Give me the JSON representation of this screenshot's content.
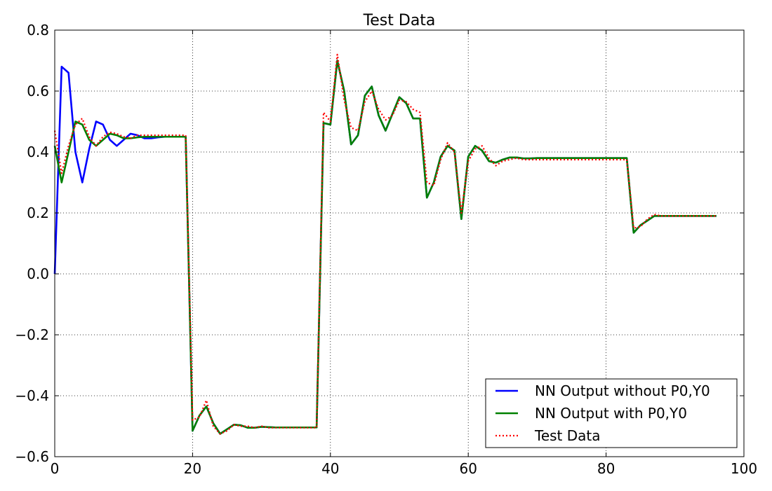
{
  "chart_data": {
    "type": "line",
    "title": "Test Data",
    "xlabel": "",
    "ylabel": "",
    "xlim": [
      0,
      100
    ],
    "ylim": [
      -0.6,
      0.8
    ],
    "grid": true,
    "legend_position": "bottom-right",
    "x_ticks": [
      0,
      20,
      40,
      60,
      80,
      100
    ],
    "x_tick_labels": [
      "0",
      "20",
      "40",
      "60",
      "80",
      "100"
    ],
    "y_ticks": [
      -0.6,
      -0.4,
      -0.2,
      0.0,
      0.2,
      0.4,
      0.6,
      0.8
    ],
    "y_tick_labels": [
      "−0.6",
      "−0.4",
      "−0.2",
      "0.0",
      "0.2",
      "0.4",
      "0.6",
      "0.8"
    ],
    "x": [
      0,
      1,
      2,
      3,
      4,
      5,
      6,
      7,
      8,
      9,
      10,
      11,
      12,
      13,
      14,
      15,
      16,
      17,
      18,
      19,
      20,
      21,
      22,
      23,
      24,
      25,
      26,
      27,
      28,
      29,
      30,
      31,
      32,
      33,
      34,
      35,
      36,
      37,
      38,
      39,
      40,
      41,
      42,
      43,
      44,
      45,
      46,
      47,
      48,
      49,
      50,
      51,
      52,
      53,
      54,
      55,
      56,
      57,
      58,
      59,
      60,
      61,
      62,
      63,
      64,
      65,
      66,
      67,
      68,
      69,
      70,
      71,
      72,
      73,
      74,
      75,
      76,
      77,
      78,
      79,
      80,
      81,
      82,
      83,
      84,
      85,
      86,
      87,
      88,
      89,
      90,
      91,
      92,
      93,
      94,
      95,
      96
    ],
    "series": [
      {
        "name": "NN Output without P0,Y0",
        "color": "#0000ff",
        "style": "solid",
        "values": [
          0.0,
          0.68,
          0.66,
          0.4,
          0.3,
          0.41,
          0.5,
          0.49,
          0.44,
          0.42,
          0.44,
          0.46,
          0.455,
          0.445,
          0.445,
          0.448,
          0.45,
          0.45,
          0.45,
          0.45,
          -0.515,
          -0.465,
          -0.435,
          -0.49,
          -0.525,
          -0.51,
          -0.495,
          -0.497,
          -0.505,
          -0.505,
          -0.502,
          -0.503,
          -0.504,
          -0.504,
          -0.504,
          -0.504,
          -0.504,
          -0.504,
          -0.504,
          0.495,
          0.49,
          0.7,
          0.6,
          0.425,
          0.455,
          0.585,
          0.615,
          0.52,
          0.47,
          0.525,
          0.58,
          0.56,
          0.51,
          0.51,
          0.25,
          0.3,
          0.385,
          0.42,
          0.405,
          0.18,
          0.385,
          0.42,
          0.405,
          0.37,
          0.365,
          0.375,
          0.382,
          0.382,
          0.379,
          0.379,
          0.38,
          0.38,
          0.38,
          0.38,
          0.38,
          0.38,
          0.38,
          0.38,
          0.38,
          0.38,
          0.38,
          0.38,
          0.38,
          0.38,
          0.135,
          0.16,
          0.175,
          0.19,
          0.19,
          0.19,
          0.19,
          0.19,
          0.19,
          0.19,
          0.19,
          0.19,
          0.19
        ]
      },
      {
        "name": "NN Output with P0,Y0",
        "color": "#008000",
        "style": "solid",
        "values": [
          0.42,
          0.3,
          0.4,
          0.5,
          0.49,
          0.44,
          0.42,
          0.44,
          0.46,
          0.455,
          0.445,
          0.445,
          0.448,
          0.45,
          0.45,
          0.45,
          0.45,
          0.45,
          0.45,
          0.45,
          -0.515,
          -0.465,
          -0.435,
          -0.49,
          -0.525,
          -0.51,
          -0.495,
          -0.497,
          -0.505,
          -0.505,
          -0.502,
          -0.503,
          -0.504,
          -0.504,
          -0.504,
          -0.504,
          -0.504,
          -0.504,
          -0.504,
          0.495,
          0.49,
          0.7,
          0.6,
          0.425,
          0.455,
          0.585,
          0.615,
          0.52,
          0.47,
          0.525,
          0.58,
          0.56,
          0.51,
          0.51,
          0.25,
          0.3,
          0.385,
          0.42,
          0.405,
          0.18,
          0.385,
          0.42,
          0.405,
          0.37,
          0.365,
          0.375,
          0.382,
          0.382,
          0.379,
          0.379,
          0.38,
          0.38,
          0.38,
          0.38,
          0.38,
          0.38,
          0.38,
          0.38,
          0.38,
          0.38,
          0.38,
          0.38,
          0.38,
          0.38,
          0.135,
          0.16,
          0.175,
          0.19,
          0.19,
          0.19,
          0.19,
          0.19,
          0.19,
          0.19,
          0.19,
          0.19,
          0.19
        ]
      },
      {
        "name": "Test Data",
        "color": "#ff0000",
        "style": "dotted",
        "values": [
          0.47,
          0.33,
          0.42,
          0.49,
          0.51,
          0.45,
          0.42,
          0.45,
          0.465,
          0.46,
          0.45,
          0.445,
          0.455,
          0.455,
          0.455,
          0.455,
          0.455,
          0.455,
          0.455,
          0.455,
          -0.48,
          -0.47,
          -0.415,
          -0.5,
          -0.525,
          -0.515,
          -0.495,
          -0.5,
          -0.5,
          -0.505,
          -0.5,
          -0.505,
          -0.505,
          -0.505,
          -0.505,
          -0.505,
          -0.505,
          -0.505,
          -0.505,
          0.53,
          0.5,
          0.72,
          0.57,
          0.48,
          0.47,
          0.565,
          0.6,
          0.54,
          0.505,
          0.52,
          0.57,
          0.565,
          0.54,
          0.53,
          0.3,
          0.29,
          0.375,
          0.43,
          0.4,
          0.2,
          0.37,
          0.41,
          0.42,
          0.38,
          0.355,
          0.37,
          0.375,
          0.38,
          0.375,
          0.375,
          0.375,
          0.375,
          0.375,
          0.375,
          0.375,
          0.375,
          0.375,
          0.375,
          0.375,
          0.375,
          0.375,
          0.375,
          0.375,
          0.375,
          0.15,
          0.155,
          0.18,
          0.195,
          0.19,
          0.19,
          0.19,
          0.19,
          0.19,
          0.19,
          0.19,
          0.19,
          0.19
        ]
      }
    ]
  }
}
